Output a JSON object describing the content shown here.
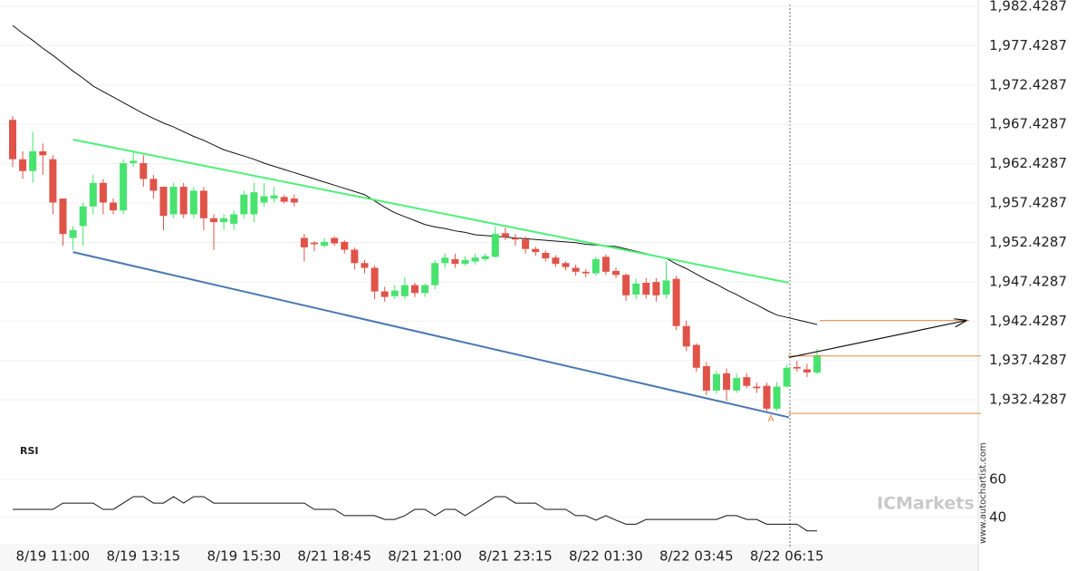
{
  "chart_data": [
    {
      "type": "candlestick",
      "categories": [
        null,
        null,
        null,
        null,
        "8/19 11:00",
        null,
        null,
        null,
        null,
        null,
        null,
        null,
        null,
        "8/19 13:15",
        null,
        null,
        null,
        null,
        null,
        null,
        null,
        null,
        null,
        "8/19 15:30",
        null,
        null,
        null,
        null,
        null,
        null,
        null,
        null,
        "8/21 18:45",
        null,
        null,
        null,
        null,
        null,
        null,
        null,
        null,
        "8/21 21:00",
        null,
        null,
        null,
        null,
        null,
        null,
        null,
        null,
        "8/21 23:15",
        null,
        null,
        null,
        null,
        null,
        null,
        null,
        null,
        "8/22 01:30",
        null,
        null,
        null,
        null,
        null,
        null,
        null,
        null,
        "8/22 03:45",
        null,
        null,
        null,
        null,
        null,
        null,
        null,
        null,
        "8/22 06:15",
        null,
        null,
        null
      ],
      "open": [
        1968,
        1963,
        1961.5,
        1964,
        1963,
        1958,
        1953,
        1954.5,
        1957,
        1960,
        1957.5,
        1956.5,
        1962.5,
        1962.5,
        1960.5,
        1959.5,
        1956,
        1959.5,
        1956,
        1959,
        1955.5,
        1955,
        1954.8,
        1956,
        1956,
        1957.5,
        1958,
        1958.2,
        1958,
        1953,
        1952.4,
        1952,
        1953,
        1952.5,
        1951.5,
        1949.8,
        1949.2,
        1946.2,
        1945.6,
        1945.6,
        1947,
        1946,
        1947,
        1949.8,
        1950.3,
        1949.7,
        1950,
        1950.3,
        1950.6,
        1953.6,
        1953,
        1952.8,
        1951.6,
        1951.1,
        1950.5,
        1949.8,
        1949.2,
        1948.7,
        1948.5,
        1950.6,
        1948.8,
        1948.3,
        1945.8,
        1947.3,
        1947.4,
        1945.8,
        1947.8,
        1941.8,
        1939.4,
        1936.7,
        1933.6,
        1935.8,
        1933.6,
        1935.3,
        1934.1,
        1934.2,
        1931.3,
        1934.1,
        1936.6,
        1936.3,
        1935.9
      ],
      "high": [
        1968.5,
        1964,
        1966.5,
        1965,
        1963.5,
        1958,
        1954.5,
        1957.5,
        1961,
        1960.5,
        1958,
        1963,
        1964,
        1963.5,
        1961,
        1959.5,
        1960,
        1960,
        1959.5,
        1959.5,
        1956,
        1956,
        1956.5,
        1959,
        1960,
        1960,
        1959.5,
        1958.5,
        1958.5,
        1953.5,
        1952.6,
        1953,
        1953.2,
        1952.7,
        1951.8,
        1950.2,
        1949.5,
        1946.8,
        1947,
        1948,
        1947.3,
        1947.2,
        1950.2,
        1951,
        1951,
        1950.7,
        1951,
        1951,
        1954.4,
        1954.3,
        1953.5,
        1953.2,
        1951.9,
        1951.4,
        1950.8,
        1950,
        1949.6,
        1949,
        1950.6,
        1950.9,
        1949.2,
        1948.5,
        1947.8,
        1947.9,
        1947.9,
        1950,
        1948.2,
        1942.5,
        1939.6,
        1937.2,
        1936.1,
        1936.4,
        1935.8,
        1935.8,
        1934.6,
        1934.6,
        1934.7,
        1936.9,
        1937.4,
        1937,
        1938.9
      ],
      "low": [
        1962,
        1960.5,
        1960,
        1961,
        1956,
        1952,
        1951.5,
        1952,
        1956,
        1956,
        1956,
        1956,
        1962,
        1959.5,
        1958,
        1954,
        1955.5,
        1955.5,
        1955.5,
        1954,
        1951.5,
        1954,
        1954,
        1955.5,
        1955,
        1957,
        1957.5,
        1957.4,
        1957,
        1950,
        1951.3,
        1951.8,
        1952,
        1951,
        1949,
        1948.5,
        1945.2,
        1944.9,
        1945.2,
        1945.2,
        1945.5,
        1945.5,
        1946.5,
        1949.2,
        1949.2,
        1949.5,
        1949.6,
        1950,
        1950.5,
        1952.7,
        1952,
        1951,
        1950.7,
        1950,
        1949.3,
        1948.9,
        1948.2,
        1948,
        1948.2,
        1948.3,
        1947.9,
        1945,
        1945.2,
        1945.3,
        1944.9,
        1945.3,
        1941.3,
        1938.6,
        1936,
        1933,
        1933.2,
        1932.3,
        1933.3,
        1933.9,
        1933.3,
        1931,
        1931,
        1934,
        1936,
        1935.3,
        1935.7
      ],
      "close": [
        1963,
        1961.5,
        1964,
        1963.5,
        1957.5,
        1953.5,
        1954,
        1957,
        1960,
        1957.5,
        1956.5,
        1962.5,
        1962.8,
        1960.5,
        1959,
        1955.8,
        1959.5,
        1956,
        1959,
        1955.5,
        1955,
        1955.5,
        1956,
        1958.5,
        1958.8,
        1958.3,
        1958.4,
        1957.6,
        1957.5,
        1951.8,
        1952.2,
        1952.5,
        1952.3,
        1951.5,
        1949.8,
        1949.2,
        1946.2,
        1945.5,
        1946.3,
        1947,
        1946,
        1947,
        1949.8,
        1950.5,
        1949.7,
        1950.2,
        1950.5,
        1950.7,
        1953.5,
        1953.1,
        1952.8,
        1951.6,
        1951.2,
        1950.4,
        1949.7,
        1949.3,
        1948.7,
        1948.5,
        1950.3,
        1948.7,
        1948.3,
        1945.7,
        1947.2,
        1945.8,
        1945.7,
        1947.6,
        1941.8,
        1939.2,
        1936.5,
        1933.6,
        1935.7,
        1933.7,
        1935.2,
        1934.2,
        1933.9,
        1931.3,
        1934.1,
        1936.5,
        1936.4,
        1935.9,
        1938.1
      ],
      "up_color": "#48e36e",
      "down_color": "#e05349",
      "moving_average": {
        "color": "#111111",
        "values": [
          1980,
          1979.0,
          1978.1,
          1977.1,
          1976.2,
          1975.2,
          1974.2,
          1973.3,
          1972.3,
          1971.6,
          1970.9,
          1970.2,
          1969.5,
          1968.8,
          1968.2,
          1967.6,
          1967.1,
          1966.5,
          1965.9,
          1965.4,
          1964.8,
          1964.2,
          1963.8,
          1963.4,
          1963.0,
          1962.5,
          1962.1,
          1961.7,
          1961.3,
          1960.9,
          1960.5,
          1960.1,
          1959.7,
          1959.3,
          1958.9,
          1958.5,
          1957.7,
          1956.9,
          1956.2,
          1955.7,
          1955.2,
          1954.7,
          1954.4,
          1954.2,
          1953.9,
          1953.7,
          1953.4,
          1953.3,
          1953.2,
          1953.1,
          1953.0,
          1952.9,
          1952.8,
          1952.7,
          1952.6,
          1952.5,
          1952.4,
          1952.2,
          1952.1,
          1952.0,
          1951.9,
          1951.6,
          1951.3,
          1951.0,
          1950.7,
          1950.4,
          1949.7,
          1949.1,
          1948.4,
          1947.7,
          1947.1,
          1946.4,
          1945.8,
          1945.1,
          1944.5,
          1943.8,
          1943.2,
          1942.9,
          1942.6,
          1942.3,
          1942.0
        ]
      },
      "trendlines": [
        {
          "color": "#4df07a",
          "x": [
            6,
            77.2
          ],
          "values": [
            1965.5,
            1947.3
          ]
        },
        {
          "color": "#4a78b0",
          "x": [
            6,
            77.2
          ],
          "values": [
            1951.2,
            1930.2
          ]
        }
      ],
      "projection": {
        "color": "#111111",
        "x": [
          77.2,
          94.8
        ],
        "values": [
          1937.8,
          1942.5
        ]
      },
      "levels": [
        1942.5,
        1938.0,
        1930.7
      ],
      "level_color": "#e3893f",
      "annotation": "A",
      "ylim": [
        1929.1,
        1983.235
      ],
      "yticks": [
        {
          "value": 1932.4287,
          "label": "1,932.4287"
        },
        {
          "value": 1937.4287,
          "label": "1,937.4287"
        },
        {
          "value": 1942.4287,
          "label": "1,942.4287"
        },
        {
          "value": 1947.4287,
          "label": "1,947.4287"
        },
        {
          "value": 1952.4287,
          "label": "1,952.4287"
        },
        {
          "value": 1957.4287,
          "label": "1,957.4287"
        },
        {
          "value": 1962.4287,
          "label": "1,962.4287"
        },
        {
          "value": 1967.4287,
          "label": "1,967.4287"
        },
        {
          "value": 1972.4287,
          "label": "1,972.4287"
        },
        {
          "value": 1977.4287,
          "label": "1,977.4287"
        },
        {
          "value": 1982.4287,
          "label": "1,982.4287"
        }
      ],
      "grid": true
    },
    {
      "type": "line",
      "title": "RSI",
      "series": [
        {
          "name": "RSI",
          "color": "#111111",
          "values": [
            44.3,
            44.3,
            44.3,
            44.3,
            44.3,
            47.6,
            47.6,
            47.6,
            47.6,
            44.3,
            44.3,
            47.6,
            51,
            51,
            47.6,
            47.6,
            51,
            47.6,
            51,
            51,
            47.6,
            47.6,
            47.6,
            47.6,
            47.6,
            47.6,
            47.6,
            47.6,
            47.6,
            47.6,
            44.3,
            44.3,
            44.3,
            41,
            41,
            41,
            41,
            39,
            39,
            41,
            44.3,
            44.3,
            41,
            44.3,
            44.3,
            41,
            44.3,
            47.6,
            51,
            51,
            47.6,
            47.6,
            47.6,
            44.3,
            44.3,
            44.3,
            41,
            41,
            38.6,
            41,
            38.6,
            36.5,
            36.5,
            39,
            39,
            39,
            39,
            39,
            39,
            39,
            39,
            41,
            41,
            39,
            39,
            36.5,
            36.5,
            36.5,
            36.5,
            33,
            33
          ]
        }
      ],
      "ylim": [
        26.2,
        78.6
      ],
      "yticks": [
        40,
        60
      ],
      "grid": true
    }
  ],
  "watermark": "ICMarkets",
  "source": "www.autochartist.com"
}
